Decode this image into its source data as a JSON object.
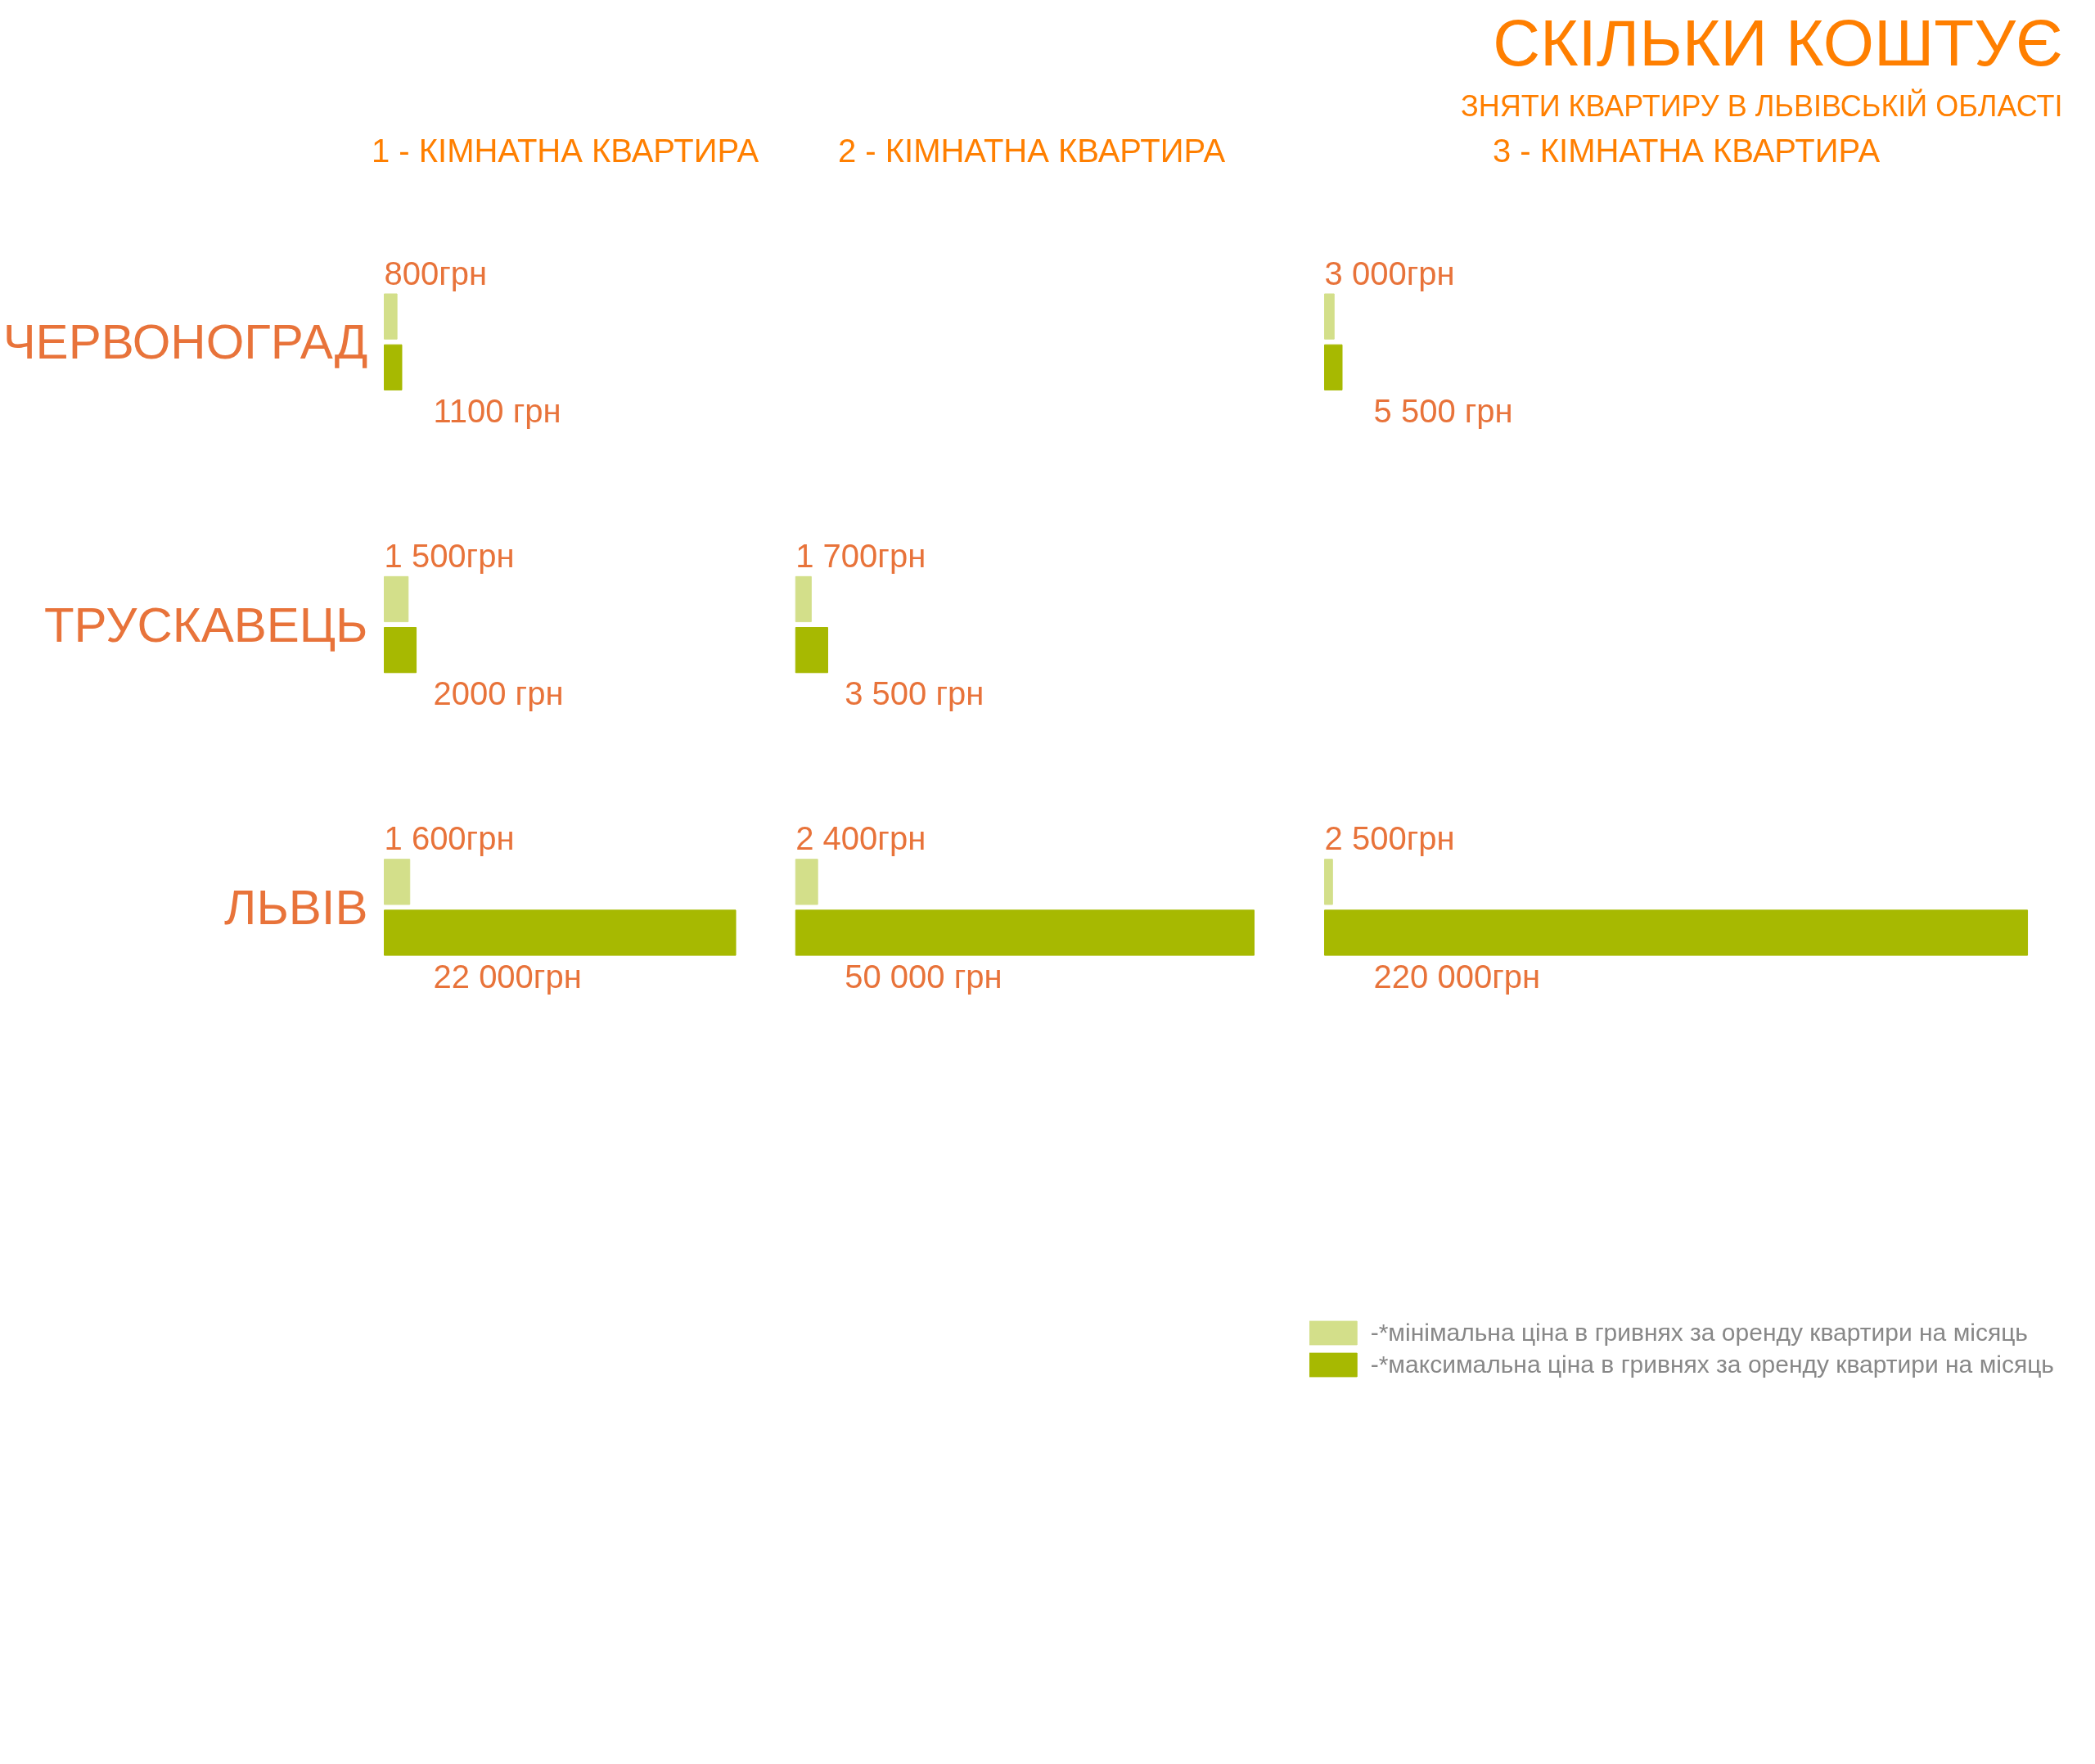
{
  "chart_data": [
    {
      "type": "bar",
      "orientation": "horizontal",
      "xlabel": "1 - КІМНАТНА КВАРТИРА",
      "categories": [
        "ЧЕРВОНОГРАД",
        "ТРУСКАВЕЦЬ",
        "ЛЬВІВ"
      ],
      "tick_labels": "y",
      "grid": false,
      "legend": false,
      "series": [
        {
          "color": "#d3df8a",
          "values": [
            800,
            1500,
            1600
          ],
          "value_labels": [
            "800грн",
            "1 500грн",
            "1 600грн"
          ]
        },
        {
          "color": "#a7b901",
          "values": [
            1100,
            2000,
            22000
          ],
          "value_labels": [
            "1100 грн",
            "2000 грн",
            "22 000грн"
          ]
        }
      ]
    },
    {
      "type": "bar",
      "orientation": "horizontal",
      "xlabel": "2 - КІМНАТНА КВАРТИРА",
      "categories": [
        null,
        null,
        null
      ],
      "tick_labels": false,
      "grid": false,
      "legend": false,
      "series": [
        {
          "color": "#d3df8a",
          "values": [
            null,
            1700,
            2400
          ],
          "value_labels": [
            null,
            "1 700грн",
            "2 400грн"
          ]
        },
        {
          "color": "#a7b901",
          "values": [
            null,
            3500,
            50000
          ],
          "value_labels": [
            null,
            "3 500 грн",
            "50 000 грн"
          ]
        }
      ]
    },
    {
      "type": "bar",
      "orientation": "horizontal",
      "title": "СКІЛЬКИ КОШТУЄ",
      "subtitle": "ЗНЯТИ КВАРТИРУ В ЛЬВІВСЬКІЙ ОБЛАСТІ",
      "xlabel": "3 - КІМНАТНА КВАРТИРА",
      "categories": [
        null,
        null,
        null
      ],
      "tick_labels": false,
      "grid": false,
      "legend": "bottom right",
      "series": [
        {
          "name": "-*мінімальна ціна в гривнях за оренду квартири на місяць",
          "color": "#d3df8a",
          "values": [
            3000,
            null,
            2500
          ],
          "value_labels": [
            "3 000грн",
            null,
            "2 500грн"
          ]
        },
        {
          "name": "-*максимальна ціна в гривнях за оренду квартири на місяць",
          "color": "#a7b901",
          "values": [
            5500,
            null,
            220000
          ],
          "value_labels": [
            "5 500 грн",
            null,
            "220 000грн"
          ]
        }
      ]
    }
  ]
}
